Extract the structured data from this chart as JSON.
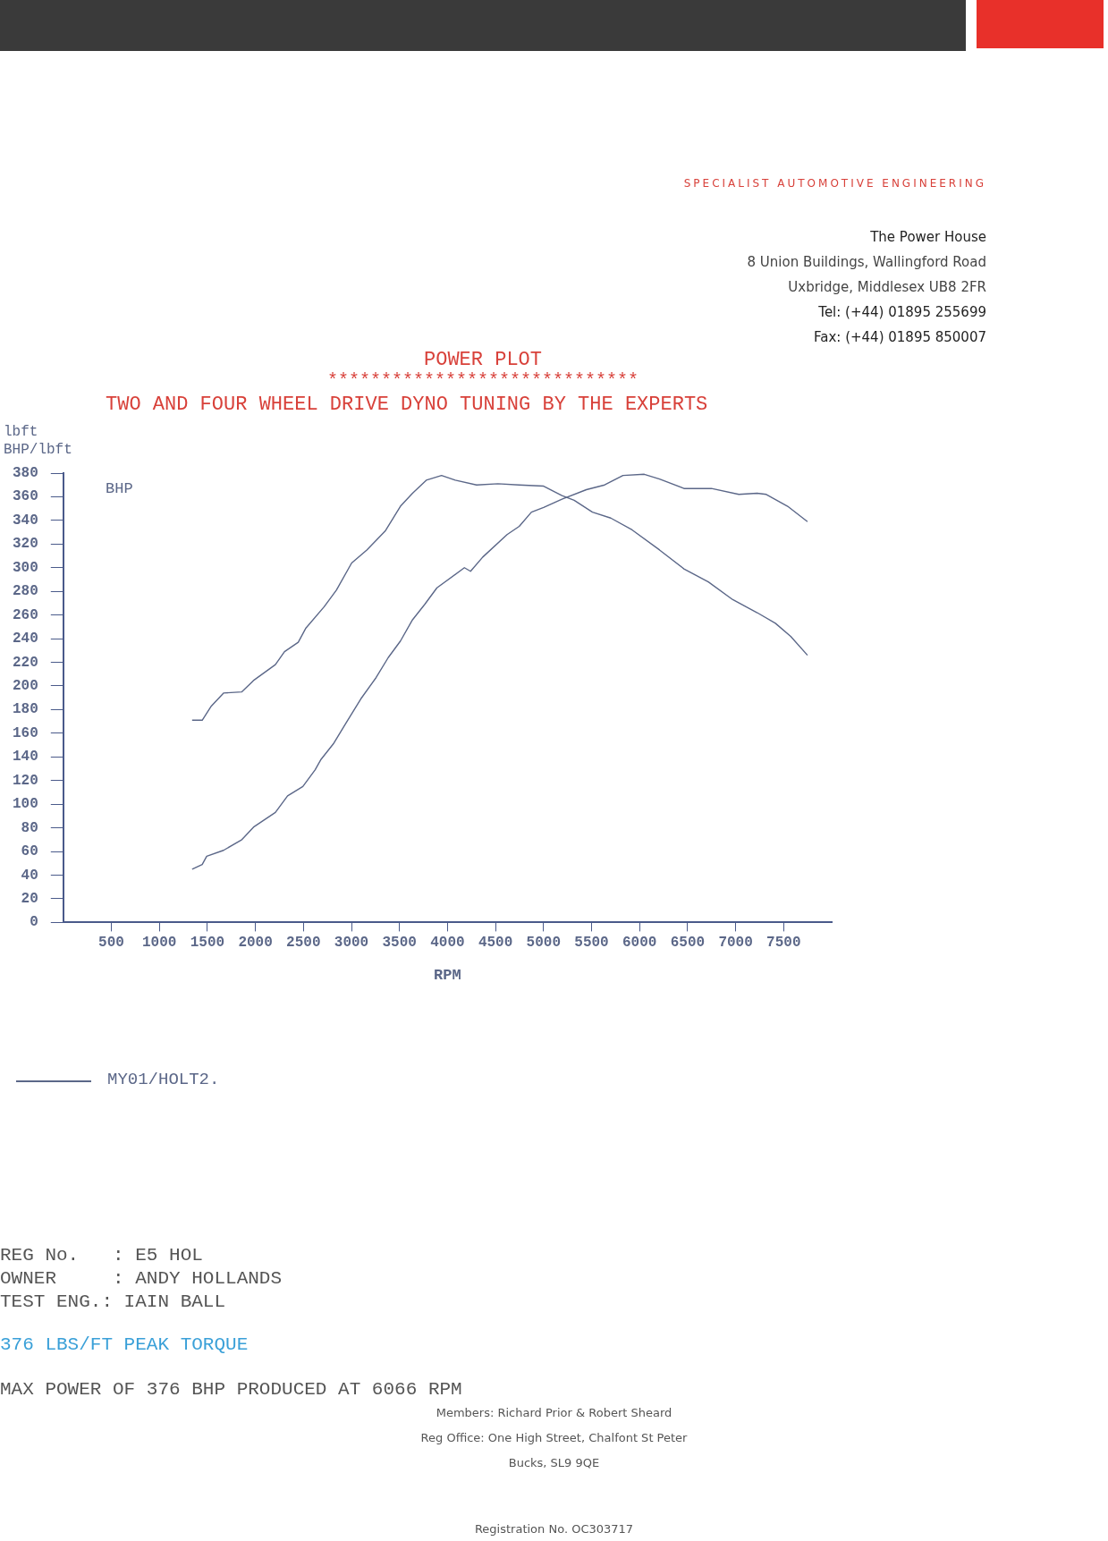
{
  "chart_data": {
    "type": "line",
    "title": "POWER PLOT",
    "subtitle": "TWO AND FOUR WHEEL DRIVE DYNO TUNING BY THE EXPERTS",
    "xlabel": "RPM",
    "ylabel": "BHP/lbft",
    "series": [
      {
        "color": "#5b6788",
        "x": [
          1341,
          1446,
          1541,
          1668,
          1859,
          1986,
          2208,
          2303,
          2446,
          2526,
          2716,
          2843,
          3002,
          3160,
          3351,
          3510,
          3636,
          3779,
          3938,
          4081,
          4303,
          4525,
          4747,
          5001,
          5192,
          5319,
          5509,
          5700,
          5922,
          6208,
          6462,
          6716,
          6970,
          7224,
          7414,
          7573,
          7748
        ],
        "values": [
          171,
          171,
          183,
          194,
          195,
          205,
          218,
          229,
          237,
          249,
          267,
          281,
          304,
          315,
          331,
          352,
          363,
          374,
          378,
          374,
          370,
          371,
          370,
          369,
          361,
          357,
          347,
          342,
          332,
          315,
          299,
          288,
          273,
          262,
          253,
          242,
          226
        ]
      },
      {
        "color": "#5b6788",
        "x": [
          1341,
          1446,
          1493,
          1668,
          1859,
          1986,
          2208,
          2335,
          2494,
          2621,
          2684,
          2811,
          2938,
          3097,
          3256,
          3383,
          3510,
          3636,
          3763,
          3890,
          4176,
          4240,
          4367,
          4620,
          4747,
          4874,
          5001,
          5192,
          5446,
          5636,
          5827,
          6049,
          6208,
          6462,
          6748,
          7033,
          7224,
          7319,
          7541,
          7748
        ],
        "values": [
          45,
          49,
          56,
          61,
          70,
          81,
          93,
          107,
          115,
          129,
          138,
          151,
          168,
          189,
          207,
          224,
          238,
          256,
          269,
          283,
          300,
          297,
          309,
          328,
          335,
          347,
          351,
          358,
          366,
          370,
          378,
          379,
          375,
          367,
          367,
          362,
          363,
          362,
          352,
          339
        ]
      }
    ],
    "xlim": [
      0,
      8000
    ],
    "xticks": [
      500,
      1000,
      1500,
      2000,
      2500,
      3000,
      3500,
      4000,
      4500,
      5000,
      5500,
      6000,
      6500,
      7000,
      7500
    ],
    "ylim": [
      0,
      380
    ],
    "yticks": [
      0,
      20,
      40,
      60,
      80,
      100,
      120,
      140,
      160,
      180,
      200,
      220,
      240,
      260,
      280,
      300,
      320,
      340,
      360,
      380
    ],
    "grid": false,
    "marker": "none",
    "line_style": "solid",
    "annotations": [
      "SPECIALIST AUTOMOTIVE ENGINEERING",
      "The Power House",
      "8 Union Buildings, Wallingford Road",
      "Uxbridge, Middlesex UB8 2FR",
      "Tel: (+44) 01895 255699",
      "Fax: (+44) 01895 850007",
      "*****************************",
      "BHP",
      "lbft",
      "MY01/HOLT2.",
      "REG No.   : E5 HOL",
      "OWNER     : ANDY HOLLANDS",
      "TEST ENG.: IAIN BALL",
      "376 LBS/FT PEAK TORQUE",
      "MAX POWER OF 376 BHP PRODUCED AT 6066 RPM",
      "Members: Richard Prior & Robert Sheard",
      "Reg Office: One High Street, Chalfont St Peter",
      "Bucks, SL9 9QE",
      "Registration No. OC303717"
    ]
  }
}
